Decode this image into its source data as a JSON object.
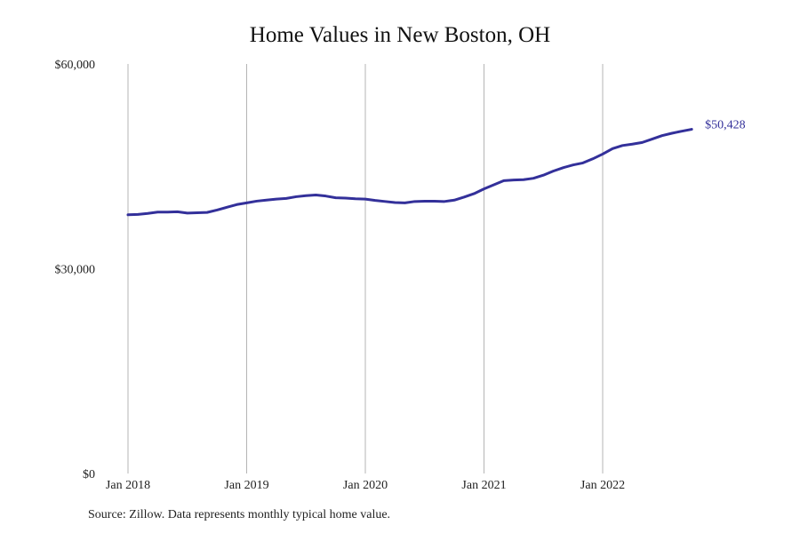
{
  "title": "Home Values in New Boston, OH",
  "source": "Source: Zillow. Data represents monthly typical home value.",
  "chart_data": {
    "type": "line",
    "title": "Home Values in New Boston, OH",
    "xlabel": "",
    "ylabel": "",
    "ylim": [
      0,
      60000
    ],
    "y_ticks": [
      {
        "value": 0,
        "label": "$0"
      },
      {
        "value": 30000,
        "label": "$30,000"
      },
      {
        "value": 60000,
        "label": "$60,000"
      }
    ],
    "x_ticks": [
      {
        "value": "2018-01",
        "label": "Jan 2018"
      },
      {
        "value": "2019-01",
        "label": "Jan 2019"
      },
      {
        "value": "2020-01",
        "label": "Jan 2020"
      },
      {
        "value": "2021-01",
        "label": "Jan 2021"
      },
      {
        "value": "2022-01",
        "label": "Jan 2022"
      }
    ],
    "grid": "vertical",
    "line_color": "#33309a",
    "end_label": "$50,428",
    "x": [
      "2018-01",
      "2018-02",
      "2018-03",
      "2018-04",
      "2018-05",
      "2018-06",
      "2018-07",
      "2018-08",
      "2018-09",
      "2018-10",
      "2018-11",
      "2018-12",
      "2019-01",
      "2019-02",
      "2019-03",
      "2019-04",
      "2019-05",
      "2019-06",
      "2019-07",
      "2019-08",
      "2019-09",
      "2019-10",
      "2019-11",
      "2019-12",
      "2020-01",
      "2020-02",
      "2020-03",
      "2020-04",
      "2020-05",
      "2020-06",
      "2020-07",
      "2020-08",
      "2020-09",
      "2020-10",
      "2020-11",
      "2020-12",
      "2021-01",
      "2021-02",
      "2021-03",
      "2021-04",
      "2021-05",
      "2021-06",
      "2021-07",
      "2021-08",
      "2021-09",
      "2021-10",
      "2021-11",
      "2021-12",
      "2022-01",
      "2022-02",
      "2022-03",
      "2022-04",
      "2022-05",
      "2022-06",
      "2022-07",
      "2022-08",
      "2022-09",
      "2022-10"
    ],
    "series": [
      {
        "values": [
          37900,
          37950,
          38100,
          38300,
          38300,
          38350,
          38150,
          38200,
          38250,
          38600,
          39000,
          39400,
          39650,
          39900,
          40050,
          40200,
          40300,
          40550,
          40700,
          40800,
          40650,
          40400,
          40350,
          40250,
          40200,
          40000,
          39850,
          39700,
          39650,
          39850,
          39900,
          39900,
          39850,
          40050,
          40500,
          41000,
          41700,
          42300,
          42900,
          43000,
          43050,
          43250,
          43700,
          44300,
          44800,
          45200,
          45500,
          46100,
          46800,
          47600,
          48050,
          48250,
          48500,
          49000,
          49500,
          49850,
          50150,
          50428
        ]
      }
    ]
  }
}
